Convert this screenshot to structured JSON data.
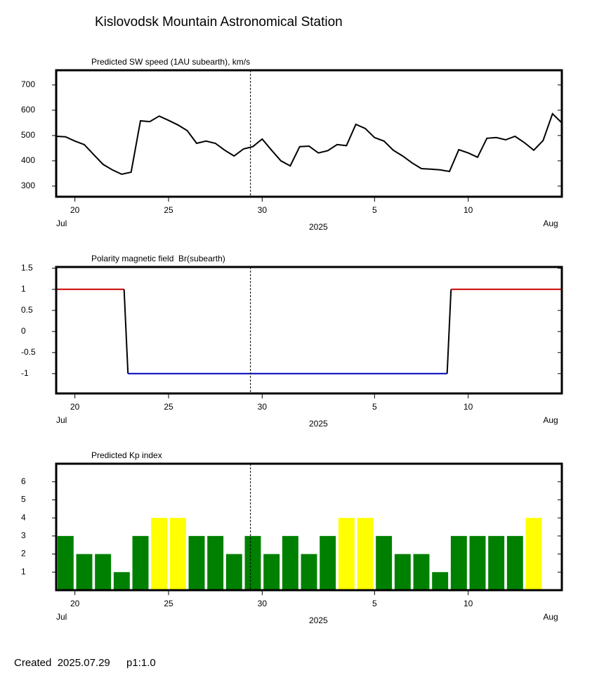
{
  "title": "Kislovodsk Mountain Astronomical Station",
  "footer": {
    "created": "Created  2025.07.29",
    "page": "p1:1.0"
  },
  "chart_data": [
    {
      "type": "line",
      "title": "Predicted SW speed (1AU subearth), km/s",
      "color": "#000000",
      "x": [
        "2025-07-19T00:00",
        "2025-07-19T12:00",
        "2025-07-20T00:00",
        "2025-07-20T12:00",
        "2025-07-21T00:00",
        "2025-07-21T12:00",
        "2025-07-22T00:00",
        "2025-07-22T12:00",
        "2025-07-23T00:00",
        "2025-07-23T12:00",
        "2025-07-24T00:00",
        "2025-07-24T12:00",
        "2025-07-25T00:00",
        "2025-07-25T12:00",
        "2025-07-26T00:00",
        "2025-07-26T12:00",
        "2025-07-27T00:00",
        "2025-07-27T12:00",
        "2025-07-28T00:00",
        "2025-07-28T12:00",
        "2025-07-29T00:00",
        "2025-07-29T12:00",
        "2025-07-30T00:00",
        "2025-07-30T12:00",
        "2025-07-31T00:00",
        "2025-07-31T12:00",
        "2025-08-01T00:00",
        "2025-08-01T12:00",
        "2025-08-02T00:00",
        "2025-08-02T12:00",
        "2025-08-03T00:00",
        "2025-08-03T12:00",
        "2025-08-04T00:00",
        "2025-08-04T12:00",
        "2025-08-05T00:00",
        "2025-08-05T12:00",
        "2025-08-06T00:00",
        "2025-08-06T12:00",
        "2025-08-07T00:00",
        "2025-08-07T12:00",
        "2025-08-08T00:00",
        "2025-08-08T12:00",
        "2025-08-09T00:00",
        "2025-08-09T12:00",
        "2025-08-10T00:00",
        "2025-08-10T12:00",
        "2025-08-11T00:00",
        "2025-08-11T12:00",
        "2025-08-12T00:00",
        "2025-08-12T12:00",
        "2025-08-13T00:00",
        "2025-08-13T12:00",
        "2025-08-14T00:00",
        "2025-08-14T12:00",
        "2025-08-15T00:00"
      ],
      "values": [
        497,
        495,
        478,
        464,
        425,
        386,
        364,
        347,
        355,
        558,
        555,
        577,
        560,
        542,
        519,
        469,
        478,
        469,
        442,
        419,
        447,
        456,
        486,
        442,
        400,
        380,
        456,
        458,
        431,
        440,
        464,
        460,
        544,
        528,
        492,
        478,
        442,
        419,
        392,
        369,
        367,
        364,
        358,
        444,
        431,
        414,
        489,
        492,
        483,
        497,
        472,
        442,
        480,
        586,
        550
      ],
      "ylim": [
        258,
        758
      ],
      "yticks": [
        300,
        400,
        500,
        600,
        700
      ],
      "xlim": [
        "2025-07-19T00:00",
        "2025-08-15T00:00"
      ],
      "xticks": [
        {
          "value": "2025-07-20",
          "label": "20"
        },
        {
          "value": "2025-07-25",
          "label": "25"
        },
        {
          "value": "2025-07-30",
          "label": "30"
        },
        {
          "value": "2025-08-05",
          "label": "5"
        },
        {
          "value": "2025-08-10",
          "label": "10"
        }
      ],
      "month_labels": [
        {
          "value": "2025-07-19",
          "label": "Jul"
        },
        {
          "value": "2025-08-14",
          "label": "Aug"
        }
      ],
      "year_label": {
        "value": "2025-08-02",
        "label": "2025"
      },
      "marker_x": "2025-07-29T09:00"
    },
    {
      "type": "step",
      "title": "Polarity magnetic field  Br(subearth)",
      "colors": {
        "positive": "#cc0000",
        "negative": "#0000bb",
        "transition": "#000000"
      },
      "x": [
        "2025-07-19T00:00",
        "2025-07-22T15:00",
        "2025-07-22T20:00",
        "2025-08-08T21:00",
        "2025-08-09T02:00",
        "2025-08-15T00:00"
      ],
      "values": [
        1,
        1,
        -1,
        -1,
        1,
        1
      ],
      "ylim": [
        -1.47,
        1.53
      ],
      "yticks": [
        1.5,
        1,
        0.5,
        0,
        -0.5,
        -1
      ],
      "xlim": [
        "2025-07-19T00:00",
        "2025-08-15T00:00"
      ],
      "xticks": [
        {
          "value": "2025-07-20",
          "label": "20"
        },
        {
          "value": "2025-07-25",
          "label": "25"
        },
        {
          "value": "2025-07-30",
          "label": "30"
        },
        {
          "value": "2025-08-05",
          "label": "5"
        },
        {
          "value": "2025-08-10",
          "label": "10"
        }
      ],
      "month_labels": [
        {
          "value": "2025-07-19",
          "label": "Jul"
        },
        {
          "value": "2025-08-14",
          "label": "Aug"
        }
      ],
      "year_label": {
        "value": "2025-08-02",
        "label": "2025"
      },
      "marker_x": "2025-07-29T09:00"
    },
    {
      "type": "bar",
      "title": "Predicted Kp index",
      "x": [
        "2025-07-19",
        "2025-07-20",
        "2025-07-21",
        "2025-07-22",
        "2025-07-23",
        "2025-07-24",
        "2025-07-25",
        "2025-07-26",
        "2025-07-27",
        "2025-07-28",
        "2025-07-29",
        "2025-07-30",
        "2025-07-31",
        "2025-08-01",
        "2025-08-02",
        "2025-08-03",
        "2025-08-04",
        "2025-08-05",
        "2025-08-06",
        "2025-08-07",
        "2025-08-08",
        "2025-08-09",
        "2025-08-10",
        "2025-08-11",
        "2025-08-12",
        "2025-08-13"
      ],
      "values": [
        3,
        2,
        2,
        1,
        3,
        4,
        4,
        3,
        3,
        2,
        3,
        2,
        3,
        2,
        3,
        4,
        4,
        3,
        2,
        2,
        1,
        3,
        3,
        3,
        3,
        4
      ],
      "colors": [
        "#008000",
        "#008000",
        "#008000",
        "#008000",
        "#008000",
        "#ffff00",
        "#ffff00",
        "#008000",
        "#008000",
        "#008000",
        "#008000",
        "#008000",
        "#008000",
        "#008000",
        "#008000",
        "#ffff00",
        "#ffff00",
        "#008000",
        "#008000",
        "#008000",
        "#008000",
        "#008000",
        "#008000",
        "#008000",
        "#008000",
        "#ffff00"
      ],
      "ylim": [
        0,
        7
      ],
      "yticks": [
        1,
        2,
        3,
        4,
        5,
        6
      ],
      "xlim": [
        "2025-07-19T00:00",
        "2025-08-15T00:00"
      ],
      "xticks": [
        {
          "value": "2025-07-20",
          "label": "20"
        },
        {
          "value": "2025-07-25",
          "label": "25"
        },
        {
          "value": "2025-07-30",
          "label": "30"
        },
        {
          "value": "2025-08-05",
          "label": "5"
        },
        {
          "value": "2025-08-10",
          "label": "10"
        }
      ],
      "month_labels": [
        {
          "value": "2025-07-19",
          "label": "Jul"
        },
        {
          "value": "2025-08-14",
          "label": "Aug"
        }
      ],
      "year_label": {
        "value": "2025-08-02",
        "label": "2025"
      },
      "marker_x": "2025-07-29T09:00"
    }
  ]
}
